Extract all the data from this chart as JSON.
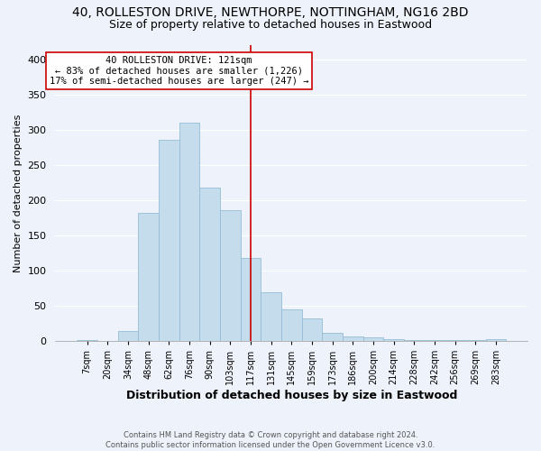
{
  "title": "40, ROLLESTON DRIVE, NEWTHORPE, NOTTINGHAM, NG16 2BD",
  "subtitle": "Size of property relative to detached houses in Eastwood",
  "xlabel": "Distribution of detached houses by size in Eastwood",
  "ylabel": "Number of detached properties",
  "bar_color": "#c5dcec",
  "bar_edge_color": "#94bdd4",
  "bin_labels": [
    "7sqm",
    "20sqm",
    "34sqm",
    "48sqm",
    "62sqm",
    "76sqm",
    "90sqm",
    "103sqm",
    "117sqm",
    "131sqm",
    "145sqm",
    "159sqm",
    "173sqm",
    "186sqm",
    "200sqm",
    "214sqm",
    "228sqm",
    "242sqm",
    "256sqm",
    "269sqm",
    "283sqm"
  ],
  "bar_heights": [
    1,
    0,
    14,
    182,
    285,
    310,
    218,
    186,
    118,
    69,
    45,
    32,
    11,
    6,
    5,
    3,
    1,
    1,
    1,
    1,
    2
  ],
  "annotation_line_index": 8,
  "annotation_text_line1": "40 ROLLESTON DRIVE: 121sqm",
  "annotation_text_line2": "← 83% of detached houses are smaller (1,226)",
  "annotation_text_line3": "17% of semi-detached houses are larger (247) →",
  "ylim": [
    0,
    420
  ],
  "yticks": [
    0,
    50,
    100,
    150,
    200,
    250,
    300,
    350,
    400
  ],
  "background_color": "#eef2fa",
  "grid_color": "#ffffff",
  "footer_line1": "Contains HM Land Registry data © Crown copyright and database right 2024.",
  "footer_line2": "Contains public sector information licensed under the Open Government Licence v3.0.",
  "annotation_box_color": "#ffffff",
  "annotation_line_color": "#cc0000",
  "title_fontsize": 10,
  "subtitle_fontsize": 9,
  "ylabel_fontsize": 8,
  "xlabel_fontsize": 9
}
